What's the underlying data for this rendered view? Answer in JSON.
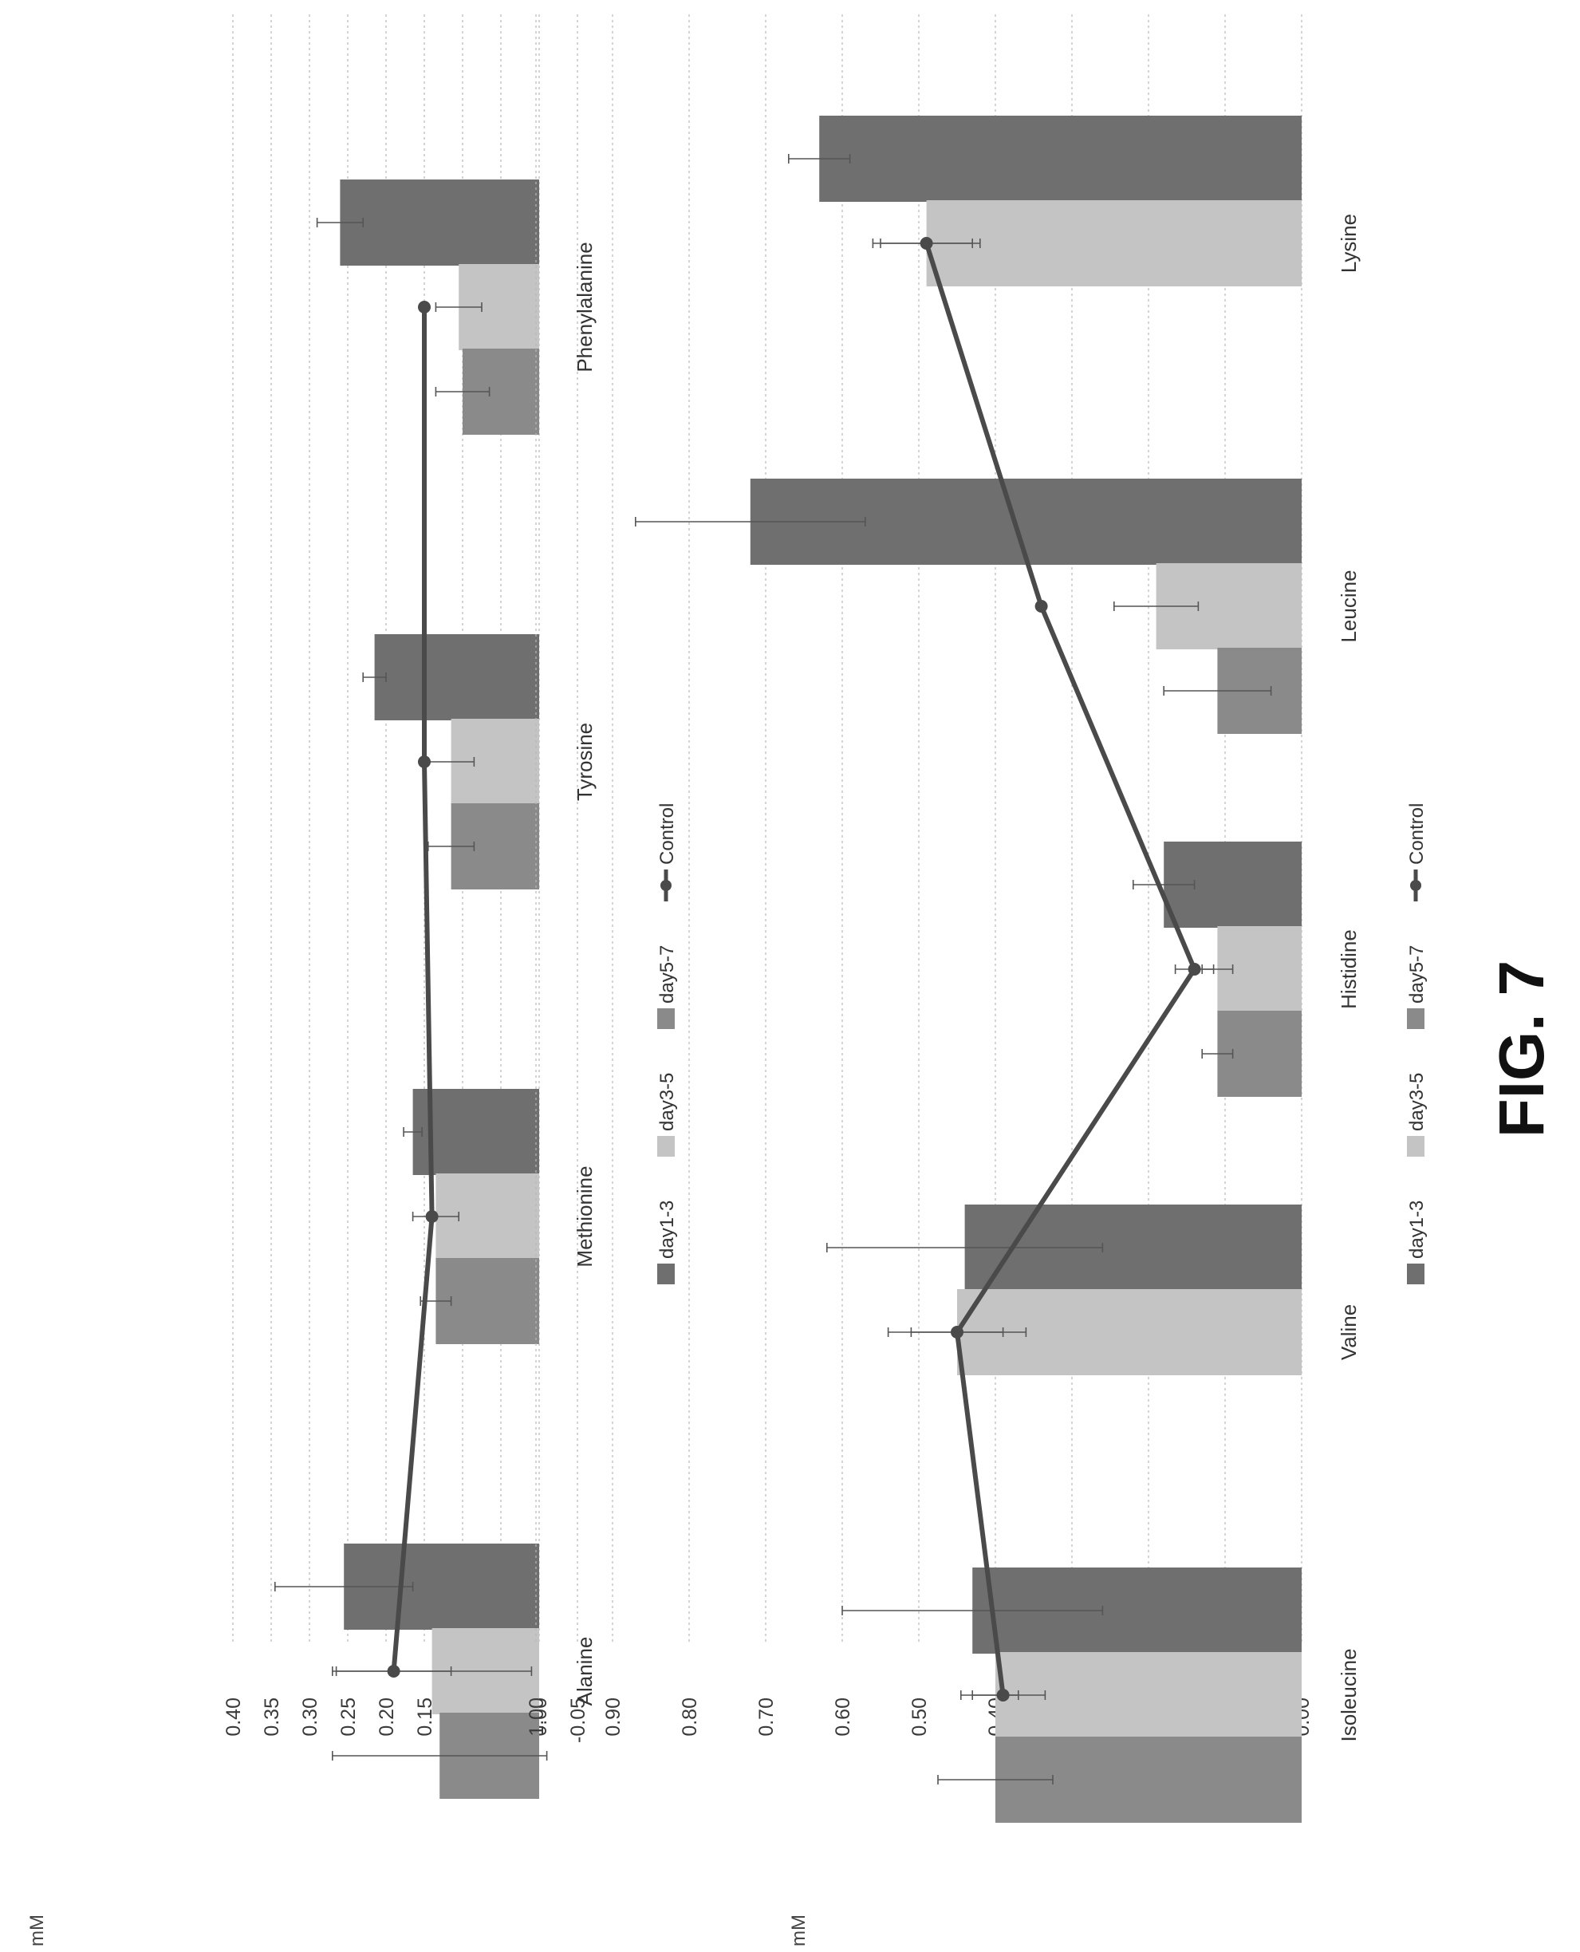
{
  "figure_label": "FIG. 7",
  "colors": {
    "day1-3": "#6f6f6f",
    "day3-5": "#c4c4c4",
    "day5-7": "#8a8a8a",
    "control": "#4a4a4a"
  },
  "chart_data": [
    {
      "type": "bar",
      "orientation": "rotated-90",
      "ylabel": "mM",
      "ylim": [
        -0.05,
        0.4
      ],
      "yticks": [
        "-0.05",
        "0.00",
        "0.05",
        "0.10",
        "0.15",
        "0.20",
        "0.25",
        "0.30",
        "0.35",
        "0.40"
      ],
      "grid": true,
      "legend_position": "bottom",
      "categories": [
        "Phenylalanine",
        "Tyrosine",
        "Methionine",
        "Alanine"
      ],
      "series": [
        {
          "name": "day1-3",
          "type": "bar",
          "values": [
            0.26,
            0.215,
            0.165,
            0.255
          ],
          "errors": [
            0.03,
            0.015,
            0.012,
            0.09
          ]
        },
        {
          "name": "day3-5",
          "type": "bar",
          "values": [
            0.105,
            0.115,
            0.135,
            0.14
          ],
          "errors": [
            0.03,
            0.03,
            0.03,
            0.13
          ]
        },
        {
          "name": "day5-7",
          "type": "bar",
          "values": [
            0.1,
            0.115,
            0.135,
            0.13
          ],
          "errors": [
            0.035,
            0.03,
            0.02,
            0.14
          ]
        },
        {
          "name": "Control",
          "type": "line",
          "values": [
            0.15,
            0.15,
            0.14,
            0.19
          ],
          "errors": [
            0,
            0,
            0.005,
            0.075
          ]
        }
      ]
    },
    {
      "type": "bar",
      "orientation": "rotated-90",
      "ylabel": "mM",
      "ylim": [
        0.0,
        1.0
      ],
      "yticks": [
        "0.00",
        "0.10",
        "0.20",
        "0.30",
        "0.40",
        "0.50",
        "0.60",
        "0.70",
        "0.80",
        "0.90",
        "1.00"
      ],
      "grid": true,
      "legend_position": "bottom",
      "categories": [
        "Lysine",
        "Leucine",
        "Histidine",
        "Valine",
        "Isoleucine"
      ],
      "series": [
        {
          "name": "day1-3",
          "type": "bar",
          "values": [
            0.63,
            0.72,
            0.18,
            0.44,
            0.43
          ],
          "errors": [
            0.04,
            0.15,
            0.04,
            0.18,
            0.17
          ]
        },
        {
          "name": "day3-5",
          "type": "bar",
          "values": [
            0.49,
            0.19,
            0.11,
            0.45,
            0.4
          ],
          "errors": [
            0.07,
            0.055,
            0.02,
            0.09,
            0.03
          ]
        },
        {
          "name": "day5-7",
          "type": "bar",
          "values": [
            0.0,
            0.11,
            0.11,
            0.0,
            0.4
          ],
          "errors": [
            0,
            0.07,
            0.02,
            0,
            0.075
          ]
        },
        {
          "name": "Control",
          "type": "line",
          "values": [
            0.49,
            0.34,
            0.14,
            0.45,
            0.39
          ],
          "errors": [
            0.06,
            0,
            0.025,
            0.06,
            0.055
          ]
        }
      ]
    }
  ]
}
